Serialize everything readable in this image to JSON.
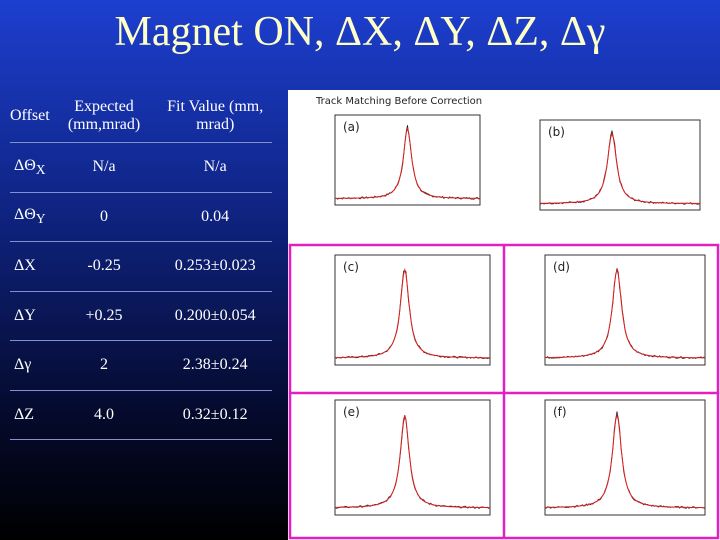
{
  "header": {
    "title": "Magnet ON, ΔX, ΔY, ΔZ, Δγ"
  },
  "table": {
    "columns": [
      "Offset",
      "Expected (mm,mrad)",
      "Fit Value (mm, mrad)"
    ],
    "rows": [
      [
        {
          "symbol": "ΔΘ",
          "sub": "X"
        },
        "N/a",
        "N/a"
      ],
      [
        {
          "symbol": "ΔΘ",
          "sub": "Y"
        },
        "0",
        "0.04"
      ],
      [
        {
          "symbol": "ΔX",
          "sub": ""
        },
        "-0.25",
        "0.253±0.023"
      ],
      [
        {
          "symbol": "ΔY",
          "sub": ""
        },
        "+0.25",
        "0.200±0.054"
      ],
      [
        {
          "symbol": "Δγ",
          "sub": ""
        },
        "2",
        "2.38±0.24"
      ],
      [
        {
          "symbol": "ΔZ",
          "sub": ""
        },
        "4.0",
        "0.32±0.12"
      ]
    ]
  },
  "plots": {
    "caption": "Track Matching Before Correction",
    "panels": [
      "(a)",
      "(b)",
      "(c)",
      "(d)",
      "(e)",
      "(f)"
    ]
  }
}
